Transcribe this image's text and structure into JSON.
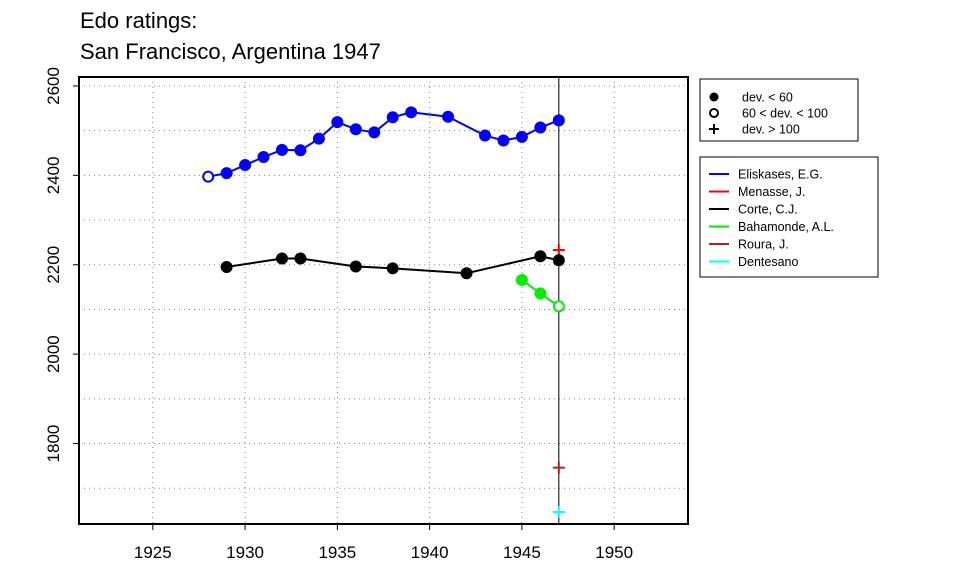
{
  "chart_data": {
    "type": "line",
    "title_lines": [
      "Edo ratings:",
      "San Francisco, Argentina 1947"
    ],
    "xlabel": "",
    "ylabel": "",
    "xlim": [
      1921,
      1954
    ],
    "ylim": [
      1620,
      2620
    ],
    "x_ticks": [
      1925,
      1930,
      1935,
      1940,
      1945,
      1950
    ],
    "y_ticks": [
      1800,
      2000,
      2200,
      2400,
      2600
    ],
    "grid": "dotted",
    "event_year": 1947,
    "symbol_legend": [
      {
        "symbol": "filled-circle",
        "label": "dev. < 60"
      },
      {
        "symbol": "open-circle",
        "label": "60 < dev. < 100"
      },
      {
        "symbol": "plus",
        "label": "dev. > 100"
      }
    ],
    "series": [
      {
        "name": "Eliskases, E.G.",
        "color": "#0000ff",
        "points": [
          {
            "x": 1928,
            "y": 2397,
            "dev": "mid"
          },
          {
            "x": 1929,
            "y": 2405,
            "dev": "low"
          },
          {
            "x": 1930,
            "y": 2423,
            "dev": "low"
          },
          {
            "x": 1931,
            "y": 2441,
            "dev": "low"
          },
          {
            "x": 1932,
            "y": 2457,
            "dev": "low"
          },
          {
            "x": 1933,
            "y": 2456,
            "dev": "low"
          },
          {
            "x": 1934,
            "y": 2482,
            "dev": "low"
          },
          {
            "x": 1935,
            "y": 2519,
            "dev": "low"
          },
          {
            "x": 1936,
            "y": 2503,
            "dev": "low"
          },
          {
            "x": 1937,
            "y": 2496,
            "dev": "low"
          },
          {
            "x": 1938,
            "y": 2530,
            "dev": "low"
          },
          {
            "x": 1939,
            "y": 2541,
            "dev": "low"
          },
          {
            "x": 1941,
            "y": 2531,
            "dev": "low"
          },
          {
            "x": 1943,
            "y": 2489,
            "dev": "low"
          },
          {
            "x": 1944,
            "y": 2478,
            "dev": "low"
          },
          {
            "x": 1945,
            "y": 2486,
            "dev": "low"
          },
          {
            "x": 1946,
            "y": 2507,
            "dev": "low"
          },
          {
            "x": 1947,
            "y": 2523,
            "dev": "low"
          }
        ]
      },
      {
        "name": "Menasse, J.",
        "color": "#ff0000",
        "points": [
          {
            "x": 1947,
            "y": 2233,
            "dev": "high"
          }
        ]
      },
      {
        "name": "Corte, C.J.",
        "color": "#000000",
        "points": [
          {
            "x": 1929,
            "y": 2195,
            "dev": "low"
          },
          {
            "x": 1932,
            "y": 2214,
            "dev": "low"
          },
          {
            "x": 1933,
            "y": 2214,
            "dev": "low"
          },
          {
            "x": 1936,
            "y": 2196,
            "dev": "low"
          },
          {
            "x": 1938,
            "y": 2192,
            "dev": "low"
          },
          {
            "x": 1942,
            "y": 2181,
            "dev": "low"
          },
          {
            "x": 1946,
            "y": 2219,
            "dev": "low"
          },
          {
            "x": 1947,
            "y": 2210,
            "dev": "low"
          }
        ]
      },
      {
        "name": "Bahamonde, A.L.",
        "color": "#00ee00",
        "points": [
          {
            "x": 1945,
            "y": 2166,
            "dev": "low"
          },
          {
            "x": 1946,
            "y": 2136,
            "dev": "low"
          },
          {
            "x": 1947,
            "y": 2107,
            "dev": "mid"
          }
        ]
      },
      {
        "name": "Roura, J.",
        "color": "#b22222",
        "points": [
          {
            "x": 1947,
            "y": 1746,
            "dev": "high"
          }
        ]
      },
      {
        "name": "Dentesano",
        "color": "#00ffff",
        "points": [
          {
            "x": 1947,
            "y": 1647,
            "dev": "high"
          }
        ]
      }
    ]
  }
}
